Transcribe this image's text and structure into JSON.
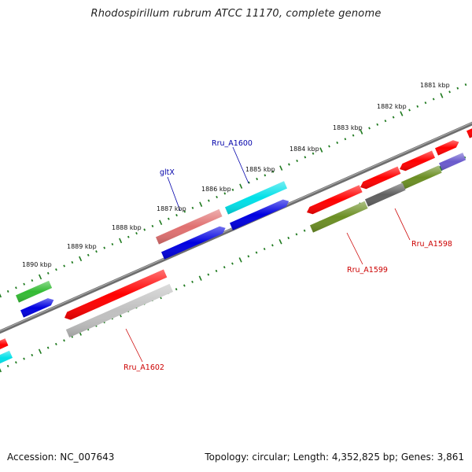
{
  "title": "Rhodospirillum rubrum ATCC 11170, complete genome",
  "footer": {
    "accession": "Accession: NC_007643",
    "summary": "Topology: circular; Length: 4,352,825 bp; Genes: 3,861"
  },
  "colors": {
    "backbone": "#7a7a7a",
    "tick": "#1f7a1f",
    "red": "#ff0000",
    "pink": "#e07070",
    "blue": "#0000e0",
    "cyan": "#00e0e8",
    "green": "#33bb33",
    "olive": "#6b8e23",
    "darkgray": "#606060",
    "lightgray": "#c0c0c0",
    "lavender": "#6a5acd",
    "label_blue": "#0000aa",
    "label_red": "#cc0000"
  },
  "scale": {
    "outer_labels": [
      "1881 kbp",
      "1882 kbp",
      "1883 kbp",
      "1884 kbp",
      "1885 kbp",
      "1886 kbp",
      "1887 kbp",
      "1888 kbp",
      "1889 kbp",
      "1890 kbp"
    ]
  },
  "gene_labels": {
    "rru_a1600": "Rru_A1600",
    "gltx": "gltX",
    "rru_a1598": "Rru_A1598",
    "rru_a1599": "Rru_A1599",
    "rru_a1602": "Rru_A1602"
  }
}
